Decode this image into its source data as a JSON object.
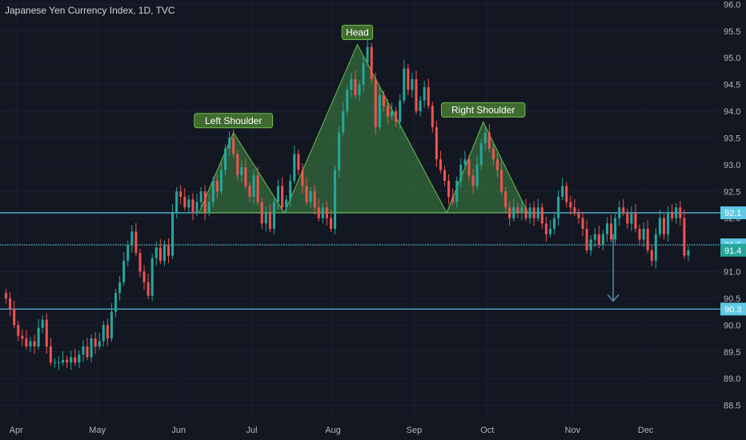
{
  "header": {
    "title": "Japanese Yen Currency Index, 1D, TVC"
  },
  "colors": {
    "background": "#131722",
    "up": "#26a69a",
    "down": "#ef5350",
    "level_line": "#5ec8e5",
    "pattern_fill": "#4caf50",
    "pattern_label_bg": "#3f6b2f",
    "axis_text": "#b2b5be",
    "arrow": "#4f8bb0"
  },
  "chart_data": {
    "type": "candlestick",
    "title": "Japanese Yen Currency Index, 1D, TVC",
    "ylim": [
      88.3,
      96.05
    ],
    "xlim": [
      0,
      176
    ],
    "y_ticks": [
      "96.0",
      "95.5",
      "95.0",
      "94.5",
      "94.0",
      "93.5",
      "93.0",
      "92.5",
      "92.0",
      "91.5",
      "91.0",
      "90.5",
      "90.0",
      "89.5",
      "89.0",
      "88.5"
    ],
    "x_ticks": [
      {
        "label": "Apr",
        "x": 3
      },
      {
        "label": "May",
        "x": 23
      },
      {
        "label": "Jun",
        "x": 43
      },
      {
        "label": "Jul",
        "x": 61
      },
      {
        "label": "Aug",
        "x": 81
      },
      {
        "label": "Sep",
        "x": 101
      },
      {
        "label": "Oct",
        "x": 119
      },
      {
        "label": "Nov",
        "x": 140
      },
      {
        "label": "Dec",
        "x": 158
      }
    ],
    "levels": [
      {
        "value": 92.1,
        "label": "92.1",
        "style": "solid"
      },
      {
        "value": 91.5,
        "label": "91.5",
        "style": "dotted"
      },
      {
        "value": 91.4,
        "label": "91.4",
        "style": "none"
      },
      {
        "value": 90.3,
        "label": "90.3",
        "style": "solid"
      }
    ],
    "pattern": {
      "name": "Head and Shoulders",
      "neckline": 92.1,
      "triangles": [
        {
          "label": "Left Shoulder",
          "left": 48,
          "apex": 56.5,
          "right": 69,
          "peak": 93.6
        },
        {
          "label": "Head",
          "left": 69,
          "apex": 87,
          "right": 109,
          "peak": 95.25
        },
        {
          "label": "Right Shoulder",
          "left": 109,
          "apex": 118,
          "right": 129,
          "peak": 93.8
        }
      ]
    },
    "target_arrow": {
      "x": 150,
      "from": 91.7,
      "to": 90.45
    },
    "candles": [
      [
        90.6,
        90.5
      ],
      [
        90.5,
        90.3
      ],
      [
        90.3,
        90.0
      ],
      [
        90.0,
        89.8
      ],
      [
        89.8,
        89.75
      ],
      [
        89.75,
        89.6
      ],
      [
        89.6,
        89.7
      ],
      [
        89.7,
        89.6
      ],
      [
        89.6,
        89.95
      ],
      [
        89.95,
        90.1
      ],
      [
        90.1,
        89.6
      ],
      [
        89.6,
        89.3
      ],
      [
        89.3,
        89.3
      ],
      [
        89.3,
        89.3
      ],
      [
        89.3,
        89.35
      ],
      [
        89.35,
        89.3
      ],
      [
        89.3,
        89.4
      ],
      [
        89.4,
        89.3
      ],
      [
        89.3,
        89.45
      ],
      [
        89.45,
        89.6
      ],
      [
        89.6,
        89.4
      ],
      [
        89.4,
        89.75
      ],
      [
        89.75,
        89.6
      ],
      [
        89.6,
        89.7
      ],
      [
        89.7,
        90.0
      ],
      [
        90.0,
        89.75
      ],
      [
        89.75,
        90.25
      ],
      [
        90.25,
        90.6
      ],
      [
        90.6,
        90.8
      ],
      [
        90.8,
        91.2
      ],
      [
        91.2,
        91.5
      ],
      [
        91.5,
        91.75
      ],
      [
        91.75,
        91.35
      ],
      [
        91.35,
        91.0
      ],
      [
        91.0,
        90.8
      ],
      [
        90.8,
        90.55
      ],
      [
        90.55,
        91.25
      ],
      [
        91.25,
        91.45
      ],
      [
        91.45,
        91.2
      ],
      [
        91.2,
        91.5
      ],
      [
        91.5,
        91.3
      ],
      [
        91.3,
        92.1
      ],
      [
        92.1,
        92.5
      ],
      [
        92.5,
        92.4
      ],
      [
        92.4,
        92.2
      ],
      [
        92.2,
        92.35
      ],
      [
        92.35,
        92.1
      ],
      [
        92.1,
        92.3
      ],
      [
        92.3,
        92.5
      ],
      [
        92.5,
        92.1
      ],
      [
        92.1,
        92.3
      ],
      [
        92.3,
        92.7
      ],
      [
        92.7,
        92.5
      ],
      [
        92.5,
        92.9
      ],
      [
        92.9,
        93.3
      ],
      [
        93.3,
        93.5
      ],
      [
        93.5,
        93.2
      ],
      [
        93.2,
        92.8
      ],
      [
        92.8,
        92.95
      ],
      [
        92.95,
        92.6
      ],
      [
        92.6,
        92.4
      ],
      [
        92.4,
        92.8
      ],
      [
        92.8,
        92.3
      ],
      [
        92.3,
        91.9
      ],
      [
        91.9,
        92.1
      ],
      [
        92.1,
        91.8
      ],
      [
        91.8,
        92.3
      ],
      [
        92.3,
        92.6
      ],
      [
        92.6,
        92.2
      ],
      [
        92.2,
        92.35
      ],
      [
        92.35,
        92.7
      ],
      [
        92.7,
        93.2
      ],
      [
        93.2,
        92.9
      ],
      [
        92.9,
        92.6
      ],
      [
        92.6,
        92.3
      ],
      [
        92.3,
        92.5
      ],
      [
        92.5,
        92.2
      ],
      [
        92.2,
        92.0
      ],
      [
        92.0,
        92.2
      ],
      [
        92.2,
        92.0
      ],
      [
        92.0,
        91.8
      ],
      [
        91.8,
        92.9
      ],
      [
        92.9,
        93.6
      ],
      [
        93.6,
        94.0
      ],
      [
        94.0,
        94.4
      ],
      [
        94.4,
        94.6
      ],
      [
        94.6,
        94.3
      ],
      [
        94.3,
        94.5
      ],
      [
        94.5,
        94.9
      ],
      [
        94.9,
        95.2
      ],
      [
        95.2,
        94.6
      ],
      [
        94.6,
        93.7
      ],
      [
        93.7,
        94.3
      ],
      [
        94.3,
        94.1
      ],
      [
        94.1,
        93.9
      ],
      [
        93.9,
        94.0
      ],
      [
        94.0,
        93.8
      ],
      [
        93.8,
        94.2
      ],
      [
        94.2,
        94.8
      ],
      [
        94.8,
        94.4
      ],
      [
        94.4,
        94.6
      ],
      [
        94.6,
        94.0
      ],
      [
        94.0,
        94.2
      ],
      [
        94.2,
        94.45
      ],
      [
        94.45,
        94.1
      ],
      [
        94.1,
        93.7
      ],
      [
        93.7,
        93.1
      ],
      [
        93.1,
        92.9
      ],
      [
        92.9,
        92.7
      ],
      [
        92.7,
        92.4
      ],
      [
        92.4,
        92.3
      ],
      [
        92.3,
        92.7
      ],
      [
        92.7,
        93.0
      ],
      [
        93.0,
        93.1
      ],
      [
        93.1,
        92.8
      ],
      [
        92.8,
        92.6
      ],
      [
        92.6,
        93.0
      ],
      [
        93.0,
        93.4
      ],
      [
        93.4,
        93.6
      ],
      [
        93.6,
        93.3
      ],
      [
        93.3,
        93.1
      ],
      [
        93.1,
        92.9
      ],
      [
        92.9,
        92.5
      ],
      [
        92.5,
        92.2
      ],
      [
        92.2,
        92.0
      ],
      [
        92.0,
        92.2
      ],
      [
        92.2,
        92.1
      ],
      [
        92.1,
        92.2
      ],
      [
        92.2,
        92.0
      ],
      [
        92.0,
        92.2
      ],
      [
        92.2,
        92.0
      ],
      [
        92.0,
        92.2
      ],
      [
        92.2,
        91.9
      ],
      [
        91.9,
        91.7
      ],
      [
        91.7,
        91.8
      ],
      [
        91.8,
        92.0
      ],
      [
        92.0,
        92.4
      ],
      [
        92.4,
        92.6
      ],
      [
        92.6,
        92.3
      ],
      [
        92.3,
        92.2
      ],
      [
        92.2,
        92.1
      ],
      [
        92.1,
        92.0
      ],
      [
        92.0,
        91.8
      ],
      [
        91.8,
        91.4
      ],
      [
        91.4,
        91.6
      ],
      [
        91.6,
        91.7
      ],
      [
        91.7,
        91.5
      ],
      [
        91.5,
        91.7
      ],
      [
        91.7,
        91.9
      ],
      [
        91.9,
        91.6
      ],
      [
        91.6,
        92.0
      ],
      [
        92.0,
        92.2
      ],
      [
        92.2,
        92.1
      ],
      [
        92.1,
        91.9
      ],
      [
        91.9,
        92.1
      ],
      [
        92.1,
        91.8
      ],
      [
        91.8,
        91.6
      ],
      [
        91.6,
        91.8
      ],
      [
        91.8,
        91.4
      ],
      [
        91.4,
        91.2
      ],
      [
        91.2,
        91.7
      ],
      [
        91.7,
        92.0
      ],
      [
        92.0,
        91.7
      ],
      [
        91.7,
        92.1
      ],
      [
        92.1,
        92.0
      ],
      [
        92.0,
        92.2
      ],
      [
        92.2,
        92.0
      ],
      [
        92.0,
        91.3
      ],
      [
        91.3,
        91.4
      ]
    ]
  }
}
